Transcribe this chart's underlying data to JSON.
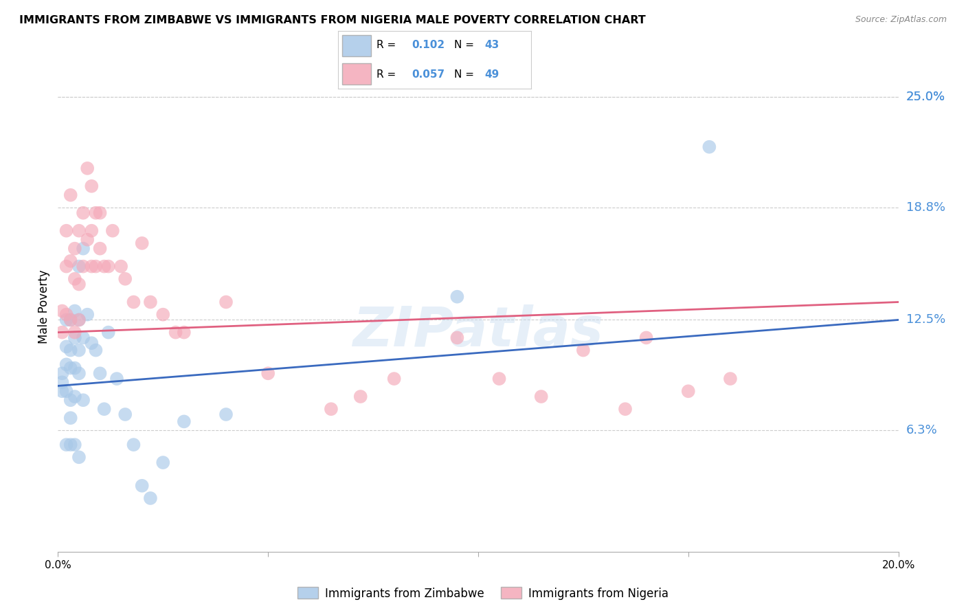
{
  "title": "IMMIGRANTS FROM ZIMBABWE VS IMMIGRANTS FROM NIGERIA MALE POVERTY CORRELATION CHART",
  "source": "Source: ZipAtlas.com",
  "ylabel": "Male Poverty",
  "ytick_labels": [
    "25.0%",
    "18.8%",
    "12.5%",
    "6.3%"
  ],
  "ytick_values": [
    0.25,
    0.188,
    0.125,
    0.063
  ],
  "xlim": [
    0.0,
    0.2
  ],
  "ylim": [
    -0.005,
    0.27
  ],
  "color_zimbabwe": "#a8c8e8",
  "color_nigeria": "#f4a8b8",
  "color_line_zimbabwe": "#3a6abf",
  "color_line_nigeria": "#e06080",
  "color_axis_right": "#4a90d9",
  "watermark": "ZIPatlas",
  "zimbabwe_x": [
    0.001,
    0.001,
    0.001,
    0.002,
    0.002,
    0.002,
    0.002,
    0.002,
    0.003,
    0.003,
    0.003,
    0.003,
    0.003,
    0.003,
    0.004,
    0.004,
    0.004,
    0.004,
    0.004,
    0.005,
    0.005,
    0.005,
    0.005,
    0.005,
    0.006,
    0.006,
    0.006,
    0.007,
    0.008,
    0.009,
    0.01,
    0.011,
    0.012,
    0.014,
    0.016,
    0.018,
    0.02,
    0.022,
    0.025,
    0.03,
    0.04,
    0.095,
    0.155
  ],
  "zimbabwe_y": [
    0.095,
    0.09,
    0.085,
    0.125,
    0.11,
    0.1,
    0.085,
    0.055,
    0.125,
    0.108,
    0.098,
    0.08,
    0.07,
    0.055,
    0.13,
    0.115,
    0.098,
    0.082,
    0.055,
    0.155,
    0.125,
    0.108,
    0.095,
    0.048,
    0.165,
    0.115,
    0.08,
    0.128,
    0.112,
    0.108,
    0.095,
    0.075,
    0.118,
    0.092,
    0.072,
    0.055,
    0.032,
    0.025,
    0.045,
    0.068,
    0.072,
    0.138,
    0.222
  ],
  "nigeria_x": [
    0.001,
    0.001,
    0.002,
    0.002,
    0.002,
    0.003,
    0.003,
    0.003,
    0.004,
    0.004,
    0.004,
    0.005,
    0.005,
    0.005,
    0.006,
    0.006,
    0.007,
    0.007,
    0.008,
    0.008,
    0.008,
    0.009,
    0.009,
    0.01,
    0.01,
    0.011,
    0.012,
    0.013,
    0.015,
    0.016,
    0.018,
    0.02,
    0.022,
    0.025,
    0.028,
    0.03,
    0.04,
    0.05,
    0.065,
    0.072,
    0.08,
    0.095,
    0.105,
    0.115,
    0.125,
    0.135,
    0.14,
    0.15,
    0.16
  ],
  "nigeria_y": [
    0.13,
    0.118,
    0.175,
    0.155,
    0.128,
    0.195,
    0.158,
    0.125,
    0.165,
    0.148,
    0.118,
    0.175,
    0.145,
    0.125,
    0.185,
    0.155,
    0.21,
    0.17,
    0.2,
    0.175,
    0.155,
    0.185,
    0.155,
    0.185,
    0.165,
    0.155,
    0.155,
    0.175,
    0.155,
    0.148,
    0.135,
    0.168,
    0.135,
    0.128,
    0.118,
    0.118,
    0.135,
    0.095,
    0.075,
    0.082,
    0.092,
    0.115,
    0.092,
    0.082,
    0.108,
    0.075,
    0.115,
    0.085,
    0.092
  ],
  "zim_trend_x0": 0.0,
  "zim_trend_y0": 0.088,
  "zim_trend_x1": 0.2,
  "zim_trend_y1": 0.125,
  "nig_trend_x0": 0.0,
  "nig_trend_y0": 0.118,
  "nig_trend_x1": 0.2,
  "nig_trend_y1": 0.135
}
